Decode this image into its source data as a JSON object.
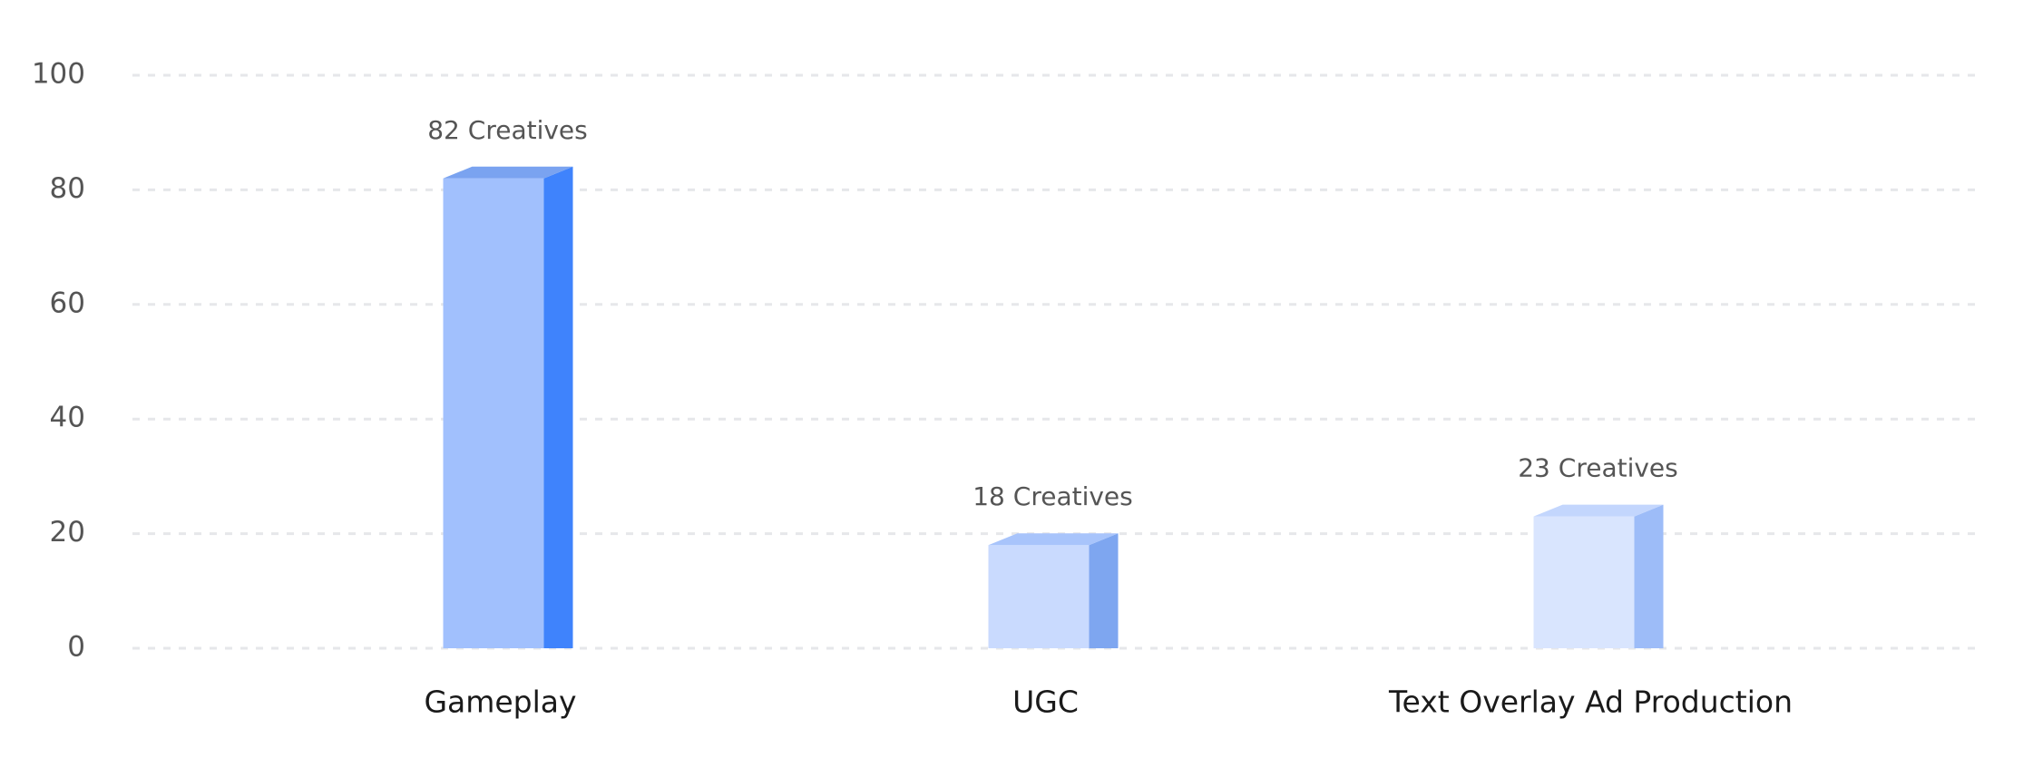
{
  "chart_data": {
    "type": "bar",
    "categories": [
      "Gameplay",
      "UGC",
      "Text Overlay Ad Production"
    ],
    "values": [
      82,
      18,
      23
    ],
    "value_labels": [
      "82 Creatives",
      "18 Creatives",
      "23 Creatives"
    ],
    "colors": [
      "#a1c0fd",
      "#c9dafe",
      "#d9e5fe"
    ],
    "side_colors": [
      "#3f83fc",
      "#7ea6f0",
      "#9dbcf8"
    ],
    "top_colors": [
      "#7aa3f0",
      "#a8c4fb",
      "#c3d6fd"
    ],
    "ylim": [
      0,
      100
    ],
    "yticks": [
      0,
      20,
      40,
      60,
      80,
      100
    ],
    "grid": true
  }
}
